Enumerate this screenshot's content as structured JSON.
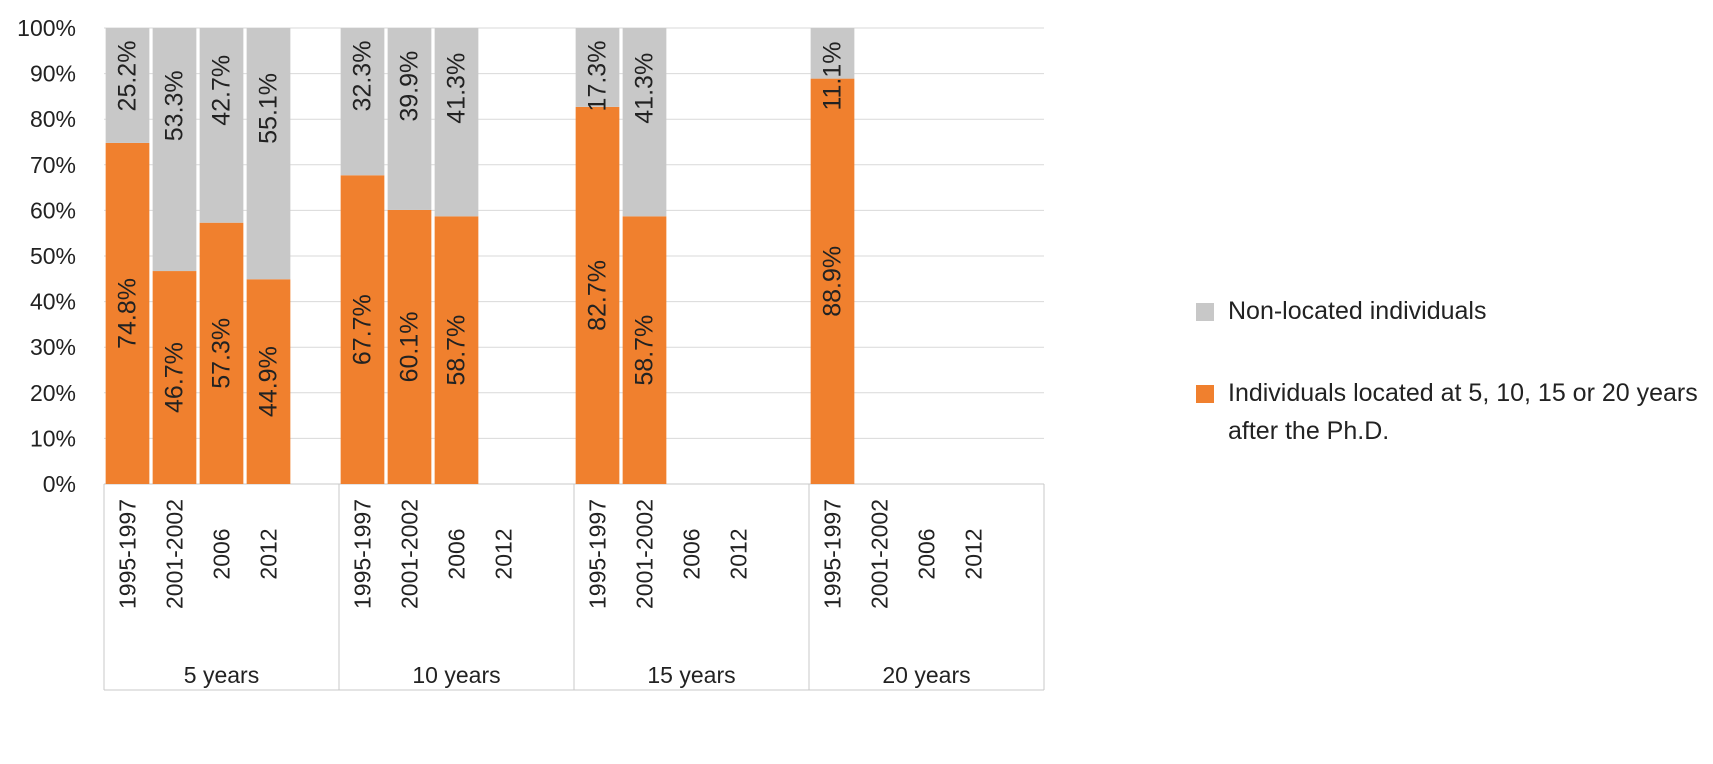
{
  "chart_data": {
    "type": "bar",
    "stacked": true,
    "ylim": [
      0,
      100
    ],
    "yticks": [
      "0%",
      "10%",
      "20%",
      "30%",
      "40%",
      "50%",
      "60%",
      "70%",
      "80%",
      "90%",
      "100%"
    ],
    "grid": true,
    "legend_position": "right",
    "groups": [
      {
        "label": "5 years",
        "categories": [
          "1995-1997",
          "2001-2002",
          "2006",
          "2012"
        ],
        "located": [
          74.8,
          46.7,
          57.3,
          44.9
        ],
        "non_located": [
          25.2,
          53.3,
          42.7,
          55.1
        ],
        "located_labels": [
          "74.8%",
          "46.7%",
          "57.3%",
          "44.9%"
        ],
        "non_located_labels": [
          "25.2%",
          "53.3%",
          "42.7%",
          "55.1%"
        ]
      },
      {
        "label": "10 years",
        "categories": [
          "1995-1997",
          "2001-2002",
          "2006",
          "2012"
        ],
        "located": [
          67.7,
          60.1,
          58.7,
          null
        ],
        "non_located": [
          32.3,
          39.9,
          41.3,
          null
        ],
        "located_labels": [
          "67.7%",
          "60.1%",
          "58.7%",
          null
        ],
        "non_located_labels": [
          "32.3%",
          "39.9%",
          "41.3%",
          null
        ]
      },
      {
        "label": "15 years",
        "categories": [
          "1995-1997",
          "2001-2002",
          "2006",
          "2012"
        ],
        "located": [
          82.7,
          58.7,
          null,
          null
        ],
        "non_located": [
          17.3,
          41.3,
          null,
          null
        ],
        "located_labels": [
          "82.7%",
          "58.7%",
          null,
          null
        ],
        "non_located_labels": [
          "17.3%",
          "41.3%",
          null,
          null
        ]
      },
      {
        "label": "20 years",
        "categories": [
          "1995-1997",
          "2001-2002",
          "2006",
          "2012"
        ],
        "located": [
          88.9,
          null,
          null,
          null
        ],
        "non_located": [
          11.1,
          null,
          null,
          null
        ],
        "located_labels": [
          "88.9%",
          null,
          null,
          null
        ],
        "non_located_labels": [
          "11.1%",
          null,
          null,
          null
        ]
      }
    ],
    "series": [
      {
        "key": "non_located",
        "name": "Non-located individuals",
        "color": "#c8c8c8"
      },
      {
        "key": "located",
        "name": "Individuals located at 5, 10, 15 or 20 years after the Ph.D.",
        "color": "#f0802e"
      }
    ]
  },
  "legend": {
    "items": [
      {
        "label": "Non-located individuals",
        "color": "#c8c8c8"
      },
      {
        "label": "Individuals located at 5, 10, 15 or 20 years after the Ph.D.",
        "color": "#f0802e"
      }
    ]
  }
}
